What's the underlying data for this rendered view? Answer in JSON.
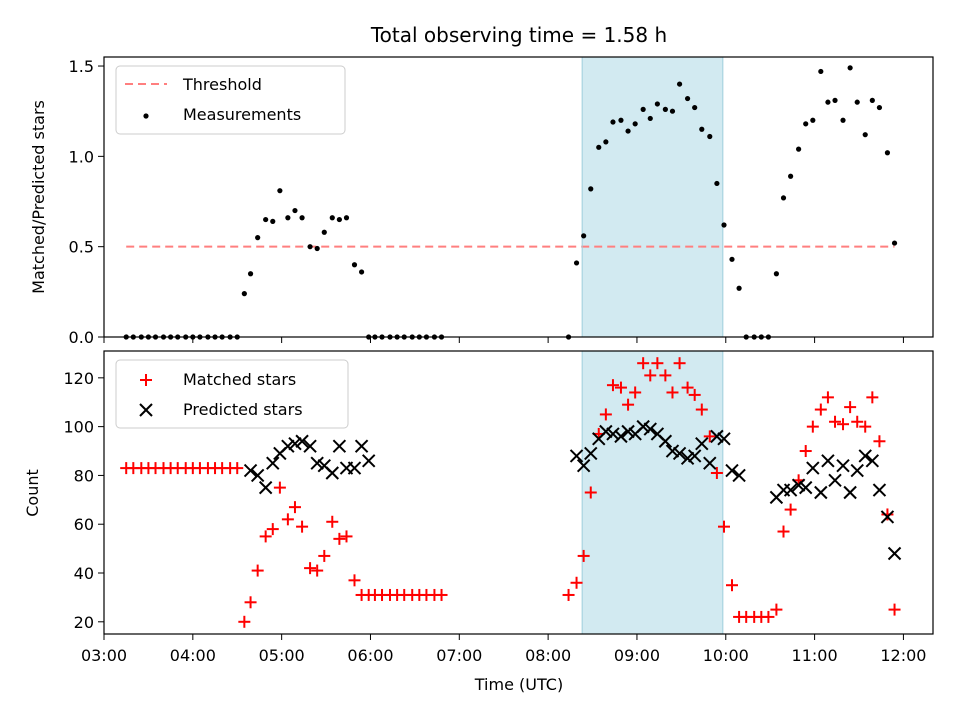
{
  "chart_data": [
    {
      "type": "scatter",
      "title": "Total observing time = 1.58 h",
      "xlabel": "",
      "ylabel": "Matched/Predicted stars",
      "xlim": [
        3.0,
        12.333
      ],
      "ylim": [
        0,
        1.55
      ],
      "yticks": [
        0,
        0.5,
        1.0,
        1.5
      ],
      "yticklabels": [
        "0.0",
        "0.5",
        "1.0",
        "1.5"
      ],
      "xticks": [
        3,
        4,
        5,
        6,
        7,
        8,
        9,
        10,
        11,
        12
      ],
      "shaded_span": [
        8.383,
        9.967
      ],
      "shade_color": "#add8e6",
      "legend_position": "top-left",
      "threshold": {
        "name": "Threshold",
        "value": 0.5,
        "x_range": [
          3.25,
          11.9
        ],
        "color": "#ff7f7f"
      },
      "series": [
        {
          "name": "Measurements",
          "marker": "dot",
          "color": "#000000",
          "x": [
            3.25,
            3.33,
            3.42,
            3.5,
            3.58,
            3.67,
            3.75,
            3.83,
            3.92,
            4.0,
            4.08,
            4.17,
            4.25,
            4.33,
            4.42,
            4.5,
            4.58,
            4.65,
            4.73,
            4.82,
            4.9,
            4.98,
            5.07,
            5.15,
            5.23,
            5.32,
            5.4,
            5.48,
            5.57,
            5.65,
            5.73,
            5.82,
            5.9,
            5.98,
            6.05,
            6.13,
            6.22,
            6.3,
            6.38,
            6.47,
            6.55,
            6.63,
            6.72,
            6.8,
            8.23,
            8.32,
            8.4,
            8.48,
            8.57,
            8.65,
            8.73,
            8.82,
            8.9,
            8.98,
            9.07,
            9.15,
            9.23,
            9.32,
            9.4,
            9.48,
            9.57,
            9.65,
            9.73,
            9.82,
            9.9,
            9.98,
            10.07,
            10.15,
            10.23,
            10.32,
            10.4,
            10.48,
            10.57,
            10.65,
            10.73,
            10.82,
            10.9,
            10.98,
            11.07,
            11.15,
            11.23,
            11.32,
            11.4,
            11.48,
            11.57,
            11.65,
            11.73,
            11.82,
            11.9
          ],
          "y": [
            0,
            0,
            0,
            0,
            0,
            0,
            0,
            0,
            0,
            0,
            0,
            0,
            0,
            0,
            0,
            0,
            0.24,
            0.35,
            0.55,
            0.65,
            0.64,
            0.81,
            0.66,
            0.7,
            0.66,
            0.5,
            0.49,
            0.58,
            0.66,
            0.65,
            0.66,
            0.4,
            0.36,
            0,
            0,
            0,
            0,
            0,
            0,
            0,
            0,
            0,
            0,
            0,
            0,
            0.41,
            0.56,
            0.82,
            1.05,
            1.08,
            1.19,
            1.2,
            1.14,
            1.18,
            1.26,
            1.21,
            1.29,
            1.26,
            1.25,
            1.4,
            1.32,
            1.27,
            1.15,
            1.11,
            0.85,
            0.62,
            0.43,
            0.27,
            0,
            0,
            0,
            0,
            0.35,
            0.77,
            0.89,
            1.04,
            1.18,
            1.2,
            1.47,
            1.3,
            1.31,
            1.2,
            1.49,
            1.3,
            1.12,
            1.31,
            1.27,
            1.02,
            0.52
          ]
        }
      ]
    },
    {
      "type": "scatter",
      "title": "",
      "xlabel": "Time (UTC)",
      "ylabel": "Count",
      "xlim": [
        3.0,
        12.333
      ],
      "ylim": [
        15,
        131
      ],
      "yticks": [
        20,
        40,
        60,
        80,
        100,
        120
      ],
      "yticklabels": [
        "20",
        "40",
        "60",
        "80",
        "100",
        "120"
      ],
      "xticks": [
        3,
        4,
        5,
        6,
        7,
        8,
        9,
        10,
        11,
        12
      ],
      "xticklabels": [
        "03:00",
        "04:00",
        "05:00",
        "06:00",
        "07:00",
        "08:00",
        "09:00",
        "10:00",
        "11:00",
        "12:00"
      ],
      "shaded_span": [
        8.383,
        9.967
      ],
      "shade_color": "#add8e6",
      "legend_position": "top-left",
      "series": [
        {
          "name": "Matched stars",
          "marker": "plus",
          "color": "#ff0000",
          "x": [
            3.25,
            3.33,
            3.42,
            3.5,
            3.58,
            3.67,
            3.75,
            3.83,
            3.92,
            4.0,
            4.08,
            4.17,
            4.25,
            4.33,
            4.42,
            4.5,
            4.58,
            4.65,
            4.73,
            4.82,
            4.9,
            4.98,
            5.07,
            5.15,
            5.23,
            5.32,
            5.4,
            5.48,
            5.57,
            5.65,
            5.73,
            5.82,
            5.9,
            5.98,
            6.05,
            6.13,
            6.22,
            6.3,
            6.38,
            6.47,
            6.55,
            6.63,
            6.72,
            6.8,
            8.23,
            8.32,
            8.4,
            8.48,
            8.57,
            8.65,
            8.73,
            8.82,
            8.9,
            8.98,
            9.07,
            9.15,
            9.23,
            9.32,
            9.4,
            9.48,
            9.57,
            9.65,
            9.73,
            9.82,
            9.9,
            9.98,
            10.07,
            10.15,
            10.23,
            10.32,
            10.4,
            10.48,
            10.57,
            10.65,
            10.73,
            10.82,
            10.9,
            10.98,
            11.07,
            11.15,
            11.23,
            11.32,
            11.4,
            11.48,
            11.57,
            11.65,
            11.73,
            11.82,
            11.9
          ],
          "y": [
            83,
            83,
            83,
            83,
            83,
            83,
            83,
            83,
            83,
            83,
            83,
            83,
            83,
            83,
            83,
            83,
            20,
            28,
            41,
            55,
            58,
            75,
            62,
            67,
            59,
            42,
            41,
            47,
            61,
            54,
            55,
            37,
            31,
            31,
            31,
            31,
            31,
            31,
            31,
            31,
            31,
            31,
            31,
            31,
            31,
            36,
            47,
            73,
            97,
            105,
            117,
            116,
            109,
            114,
            126,
            121,
            126,
            121,
            114,
            126,
            116,
            113,
            107,
            96,
            81,
            59,
            35,
            22,
            22,
            22,
            22,
            22,
            25,
            57,
            66,
            78,
            90,
            100,
            107,
            112,
            102,
            101,
            108,
            102,
            100,
            112,
            94,
            64,
            25
          ]
        },
        {
          "name": "Predicted stars",
          "marker": "x",
          "color": "#000000",
          "x": [
            4.65,
            4.73,
            4.82,
            4.9,
            4.98,
            5.07,
            5.15,
            5.23,
            5.32,
            5.4,
            5.48,
            5.57,
            5.65,
            5.73,
            5.82,
            5.9,
            5.98,
            8.32,
            8.4,
            8.48,
            8.57,
            8.65,
            8.73,
            8.82,
            8.9,
            8.98,
            9.07,
            9.15,
            9.23,
            9.32,
            9.4,
            9.48,
            9.57,
            9.65,
            9.73,
            9.82,
            9.9,
            9.98,
            10.07,
            10.15,
            10.57,
            10.65,
            10.73,
            10.82,
            10.9,
            10.98,
            11.07,
            11.15,
            11.23,
            11.32,
            11.4,
            11.48,
            11.57,
            11.65,
            11.73,
            11.82,
            11.9
          ],
          "y": [
            82,
            80,
            75,
            85,
            89,
            92,
            93,
            94,
            92,
            85,
            84,
            81,
            92,
            83,
            83,
            92,
            86,
            88,
            84,
            89,
            95,
            98,
            97,
            96,
            98,
            97,
            100,
            99,
            97,
            94,
            90,
            89,
            87,
            88,
            93,
            85,
            96,
            95,
            82,
            80,
            71,
            74,
            74,
            76,
            75,
            83,
            73,
            86,
            78,
            84,
            73,
            82,
            88,
            86,
            74,
            63,
            48
          ]
        }
      ]
    }
  ]
}
